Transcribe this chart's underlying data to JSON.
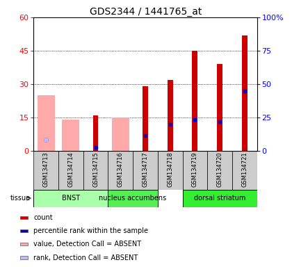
{
  "title": "GDS2344 / 1441765_at",
  "samples": [
    "GSM134713",
    "GSM134714",
    "GSM134715",
    "GSM134716",
    "GSM134717",
    "GSM134718",
    "GSM134719",
    "GSM134720",
    "GSM134721"
  ],
  "tissue_data": [
    {
      "label": "BNST",
      "start": 0,
      "end": 3,
      "color": "#aaffaa"
    },
    {
      "label": "nucleus accumbens",
      "start": 3,
      "end": 5,
      "color": "#55ee55"
    },
    {
      "label": "dorsal striatum",
      "start": 6,
      "end": 9,
      "color": "#33ee33"
    }
  ],
  "red_bars": [
    0,
    0,
    16,
    0,
    29,
    32,
    45,
    39,
    52
  ],
  "pink_bars": [
    25,
    14,
    0,
    15,
    0,
    0,
    0,
    0,
    0
  ],
  "blue_vals": [
    5,
    0,
    1.5,
    0,
    7,
    12,
    14,
    13,
    27
  ],
  "lblue_vals": [
    5,
    0,
    0,
    0,
    0,
    0,
    0,
    0,
    0
  ],
  "ylim": [
    0,
    60
  ],
  "yticks": [
    0,
    15,
    30,
    45,
    60
  ],
  "y2lim": [
    0,
    100
  ],
  "y2ticks": [
    0,
    25,
    50,
    75,
    100
  ],
  "legend_items": [
    {
      "color": "#cc0000",
      "label": "count"
    },
    {
      "color": "#0000cc",
      "label": "percentile rank within the sample"
    },
    {
      "color": "#ffaaaa",
      "label": "value, Detection Call = ABSENT"
    },
    {
      "color": "#bbbbff",
      "label": "rank, Detection Call = ABSENT"
    }
  ],
  "title_fontsize": 10,
  "tick_fontsize": 8,
  "sample_fontsize": 6,
  "tissue_fontsize": 7,
  "legend_fontsize": 7
}
